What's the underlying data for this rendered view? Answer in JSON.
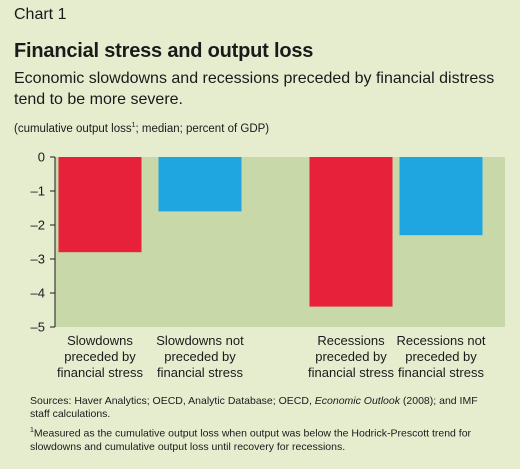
{
  "header": {
    "chart_number": "Chart 1",
    "title": "Financial stress and output loss",
    "subtitle": "Economic slowdowns and recessions preceded by financial distress tend to be more severe.",
    "units_text": "(cumulative output loss",
    "units_footnote_mark": "1",
    "units_rest": "; median; percent of GDP)"
  },
  "chart_data": {
    "type": "bar",
    "categories": [
      [
        "Slowdowns",
        "preceded by",
        "financial stress"
      ],
      [
        "Slowdowns not",
        "preceded by",
        "financial stress"
      ],
      [
        "Recessions",
        "preceded by",
        "financial stress"
      ],
      [
        "Recessions not",
        "preceded by",
        "financial stress"
      ]
    ],
    "values": [
      -2.8,
      -1.6,
      -4.4,
      -2.3
    ],
    "colors": [
      "#e8213a",
      "#1fa6e0",
      "#e8213a",
      "#1fa6e0"
    ],
    "ylim": [
      -5,
      0
    ],
    "yticks": [
      0,
      -1,
      -2,
      -3,
      -4,
      -5
    ],
    "ytick_labels": [
      "0",
      "–1",
      "–2",
      "–3",
      "–4",
      "–5"
    ],
    "plot_background": "#c9d8a9",
    "grid": false
  },
  "notes": {
    "sources_prefix": "Sources: Haver Analytics; OECD, Analytic Database; OECD, ",
    "sources_italic": "Economic Outlook",
    "sources_suffix": " (2008); and IMF staff calculations.",
    "footnote_mark": "1",
    "footnote_text": "Measured as the cumulative output loss when output was below the Hodrick-Prescott trend for slowdowns and cumulative output loss until recovery for recessions."
  }
}
